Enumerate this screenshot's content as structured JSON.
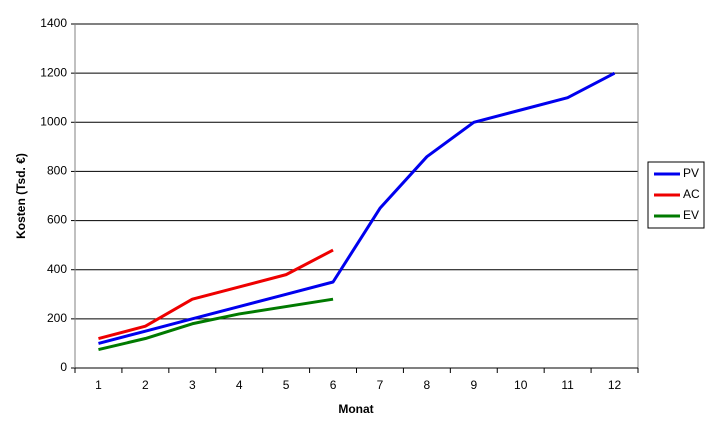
{
  "chart_data": {
    "type": "line",
    "xlabel": "Monat",
    "ylabel": "Kosten (Tsd. €)",
    "categories": [
      "1",
      "2",
      "3",
      "4",
      "5",
      "6",
      "7",
      "8",
      "9",
      "10",
      "11",
      "12"
    ],
    "series": [
      {
        "name": "PV",
        "color": "#0000ee",
        "values": [
          100,
          150,
          200,
          250,
          300,
          350,
          650,
          860,
          1000,
          1050,
          1100,
          1200
        ]
      },
      {
        "name": "AC",
        "color": "#ee0000",
        "values": [
          120,
          170,
          280,
          330,
          380,
          480,
          null,
          null,
          null,
          null,
          null,
          null
        ]
      },
      {
        "name": "EV",
        "color": "#007a00",
        "values": [
          75,
          120,
          180,
          220,
          250,
          280,
          null,
          null,
          null,
          null,
          null,
          null
        ]
      }
    ],
    "ylim": [
      0,
      1400
    ],
    "yticks": [
      0,
      200,
      400,
      600,
      800,
      1000,
      1200,
      1400
    ],
    "grid": true,
    "legend": "right"
  }
}
